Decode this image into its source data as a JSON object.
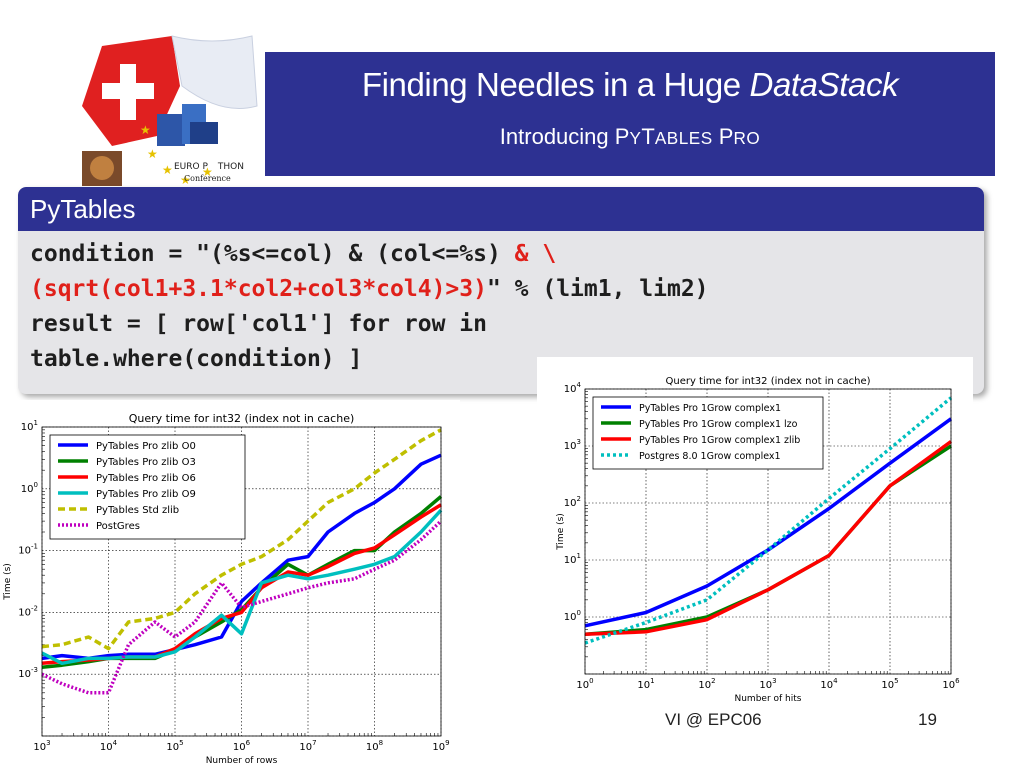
{
  "header": {
    "title_prefix": "Finding Needles in a Huge ",
    "title_emph": "DataStack",
    "subtitle_prefix": "Introducing P",
    "subtitle_sc1": "Y",
    "subtitle_mid1": "T",
    "subtitle_sc2": "ABLES",
    "subtitle_mid2": " P",
    "subtitle_sc3": "RO"
  },
  "logo": {
    "line1": "EURO P",
    "line1b": "THON",
    "line2": "Conference"
  },
  "block": {
    "title": "PyTables",
    "lines": [
      [
        {
          "t": "condition = \"(%s<=col) & (col<=%s) ",
          "c": "k"
        },
        {
          "t": "& \\",
          "c": "r"
        }
      ],
      [
        {
          "t": "(sqrt(col1+3.1*col2+col3*col4)>3)",
          "c": "r"
        },
        {
          "t": "\" % (lim1, lim2)",
          "c": "k"
        }
      ],
      [
        {
          "t": "result = [ row['col1'] for row in",
          "c": "k"
        }
      ],
      [
        {
          "t": "table.where(condition) ]",
          "c": "k"
        }
      ]
    ]
  },
  "colors": {
    "header_bg": "#2d3192",
    "code_red": "#e0201a"
  },
  "chart_data": [
    {
      "type": "line",
      "title": "Query time for int32 (index not in cache)",
      "xlabel": "Number of rows",
      "ylabel": "Time (s)",
      "xscale": "log",
      "yscale": "log",
      "xlim": [
        1000,
        1000000000
      ],
      "ylim": [
        0.0001,
        10
      ],
      "xticks": [
        "10^3",
        "10^4",
        "10^5",
        "10^6",
        "10^7",
        "10^8",
        "10^9"
      ],
      "yticks": [
        "10^-3",
        "10^-2",
        "10^-1",
        "10^0",
        "10^1"
      ],
      "grid": true,
      "legend": "top-left",
      "series": [
        {
          "name": "PyTables Pro zlib O0",
          "color": "#0000ff",
          "dash": "solid",
          "points": [
            [
              1000,
              0.0018
            ],
            [
              2000,
              0.002
            ],
            [
              5000,
              0.0018
            ],
            [
              10000,
              0.002
            ],
            [
              20000,
              0.0021
            ],
            [
              50000,
              0.0021
            ],
            [
              100000,
              0.0025
            ],
            [
              200000,
              0.003
            ],
            [
              500000,
              0.004
            ],
            [
              1000000,
              0.015
            ],
            [
              2000000,
              0.03
            ],
            [
              5000000,
              0.07
            ],
            [
              10000000,
              0.08
            ],
            [
              20000000,
              0.2
            ],
            [
              50000000,
              0.4
            ],
            [
              100000000,
              0.6
            ],
            [
              200000000,
              1.0
            ],
            [
              500000000,
              2.5
            ],
            [
              1000000000,
              3.5
            ]
          ]
        },
        {
          "name": "PyTables Pro zlib O3",
          "color": "#008000",
          "dash": "solid",
          "points": [
            [
              1000,
              0.0013
            ],
            [
              2000,
              0.0014
            ],
            [
              5000,
              0.0016
            ],
            [
              10000,
              0.0018
            ],
            [
              20000,
              0.0018
            ],
            [
              50000,
              0.0018
            ],
            [
              100000,
              0.0025
            ],
            [
              200000,
              0.004
            ],
            [
              500000,
              0.007
            ],
            [
              1000000,
              0.011
            ],
            [
              2000000,
              0.025
            ],
            [
              5000000,
              0.06
            ],
            [
              10000000,
              0.04
            ],
            [
              20000000,
              0.06
            ],
            [
              50000000,
              0.1
            ],
            [
              100000000,
              0.1
            ],
            [
              200000000,
              0.2
            ],
            [
              500000000,
              0.4
            ],
            [
              1000000000,
              0.75
            ]
          ]
        },
        {
          "name": "PyTables Pro zlib O6",
          "color": "#ff0000",
          "dash": "solid",
          "points": [
            [
              1000,
              0.0015
            ],
            [
              2000,
              0.0016
            ],
            [
              5000,
              0.0017
            ],
            [
              10000,
              0.0018
            ],
            [
              20000,
              0.0019
            ],
            [
              50000,
              0.0019
            ],
            [
              100000,
              0.0026
            ],
            [
              200000,
              0.0045
            ],
            [
              500000,
              0.008
            ],
            [
              1000000,
              0.01
            ],
            [
              2000000,
              0.025
            ],
            [
              5000000,
              0.045
            ],
            [
              10000000,
              0.04
            ],
            [
              20000000,
              0.055
            ],
            [
              50000000,
              0.09
            ],
            [
              100000000,
              0.11
            ],
            [
              200000000,
              0.18
            ],
            [
              500000000,
              0.35
            ],
            [
              1000000000,
              0.55
            ]
          ]
        },
        {
          "name": "PyTables Pro zlib O9",
          "color": "#00bfbf",
          "dash": "solid",
          "points": [
            [
              1000,
              0.0022
            ],
            [
              2000,
              0.0015
            ],
            [
              5000,
              0.0018
            ],
            [
              10000,
              0.0018
            ],
            [
              20000,
              0.0019
            ],
            [
              50000,
              0.0019
            ],
            [
              100000,
              0.0023
            ],
            [
              200000,
              0.004
            ],
            [
              500000,
              0.009
            ],
            [
              1000000,
              0.0045
            ],
            [
              2000000,
              0.03
            ],
            [
              5000000,
              0.04
            ],
            [
              10000000,
              0.035
            ],
            [
              20000000,
              0.04
            ],
            [
              50000000,
              0.05
            ],
            [
              100000000,
              0.06
            ],
            [
              200000000,
              0.08
            ],
            [
              500000000,
              0.2
            ],
            [
              1000000000,
              0.45
            ]
          ]
        },
        {
          "name": "PyTables Std zlib",
          "color": "#bfbf00",
          "dash": "dashed",
          "points": [
            [
              1000,
              0.0028
            ],
            [
              2000,
              0.003
            ],
            [
              5000,
              0.004
            ],
            [
              10000,
              0.0026
            ],
            [
              20000,
              0.007
            ],
            [
              50000,
              0.008
            ],
            [
              100000,
              0.01
            ],
            [
              200000,
              0.02
            ],
            [
              500000,
              0.04
            ],
            [
              1000000,
              0.06
            ],
            [
              2000000,
              0.08
            ],
            [
              5000000,
              0.15
            ],
            [
              10000000,
              0.3
            ],
            [
              20000000,
              0.6
            ],
            [
              50000000,
              1.0
            ],
            [
              100000000,
              1.8
            ],
            [
              200000000,
              3.0
            ],
            [
              500000000,
              6.0
            ],
            [
              1000000000,
              9.0
            ]
          ]
        },
        {
          "name": "PostGres",
          "color": "#bf00bf",
          "dash": "dotted",
          "points": [
            [
              1000,
              0.001
            ],
            [
              2000,
              0.0007
            ],
            [
              5000,
              0.0005
            ],
            [
              10000,
              0.0005
            ],
            [
              20000,
              0.003
            ],
            [
              50000,
              0.007
            ],
            [
              100000,
              0.004
            ],
            [
              200000,
              0.007
            ],
            [
              500000,
              0.03
            ],
            [
              1000000,
              0.012
            ],
            [
              2000000,
              0.015
            ],
            [
              5000000,
              0.02
            ],
            [
              10000000,
              0.025
            ],
            [
              20000000,
              0.03
            ],
            [
              50000000,
              0.035
            ],
            [
              100000000,
              0.05
            ],
            [
              200000000,
              0.07
            ],
            [
              500000000,
              0.15
            ],
            [
              1000000000,
              0.3
            ]
          ]
        }
      ]
    },
    {
      "type": "line",
      "title": "Query time for int32 (index not in cache)",
      "xlabel": "Number of hits",
      "ylabel": "Time (s)",
      "xscale": "log",
      "yscale": "log",
      "xlim": [
        1,
        1000000
      ],
      "ylim": [
        0.1,
        10000
      ],
      "xticks": [
        "10^0",
        "10^1",
        "10^2",
        "10^3",
        "10^4",
        "10^5",
        "10^6"
      ],
      "yticks": [
        "10^0",
        "10^1",
        "10^2",
        "10^3",
        "10^4"
      ],
      "grid": true,
      "legend": "top-left",
      "series": [
        {
          "name": "PyTables Pro 1Grow complex1",
          "color": "#0000ff",
          "dash": "solid",
          "points": [
            [
              1,
              0.7
            ],
            [
              10,
              1.2
            ],
            [
              100,
              3.5
            ],
            [
              1000,
              15
            ],
            [
              10000,
              80
            ],
            [
              100000,
              500
            ],
            [
              1000000,
              3000
            ]
          ]
        },
        {
          "name": "PyTables Pro 1Grow complex1 lzo",
          "color": "#008000",
          "dash": "solid",
          "points": [
            [
              1,
              0.5
            ],
            [
              10,
              0.6
            ],
            [
              100,
              1.0
            ],
            [
              1000,
              3.0
            ],
            [
              10000,
              12
            ],
            [
              100000,
              200
            ],
            [
              1000000,
              1000
            ]
          ]
        },
        {
          "name": "PyTables Pro 1Grow complex1 zlib",
          "color": "#ff0000",
          "dash": "solid",
          "points": [
            [
              1,
              0.5
            ],
            [
              10,
              0.55
            ],
            [
              100,
              0.9
            ],
            [
              1000,
              3.0
            ],
            [
              10000,
              12
            ],
            [
              100000,
              200
            ],
            [
              1000000,
              1200
            ]
          ]
        },
        {
          "name": "Postgres 8.0 1Grow complex1",
          "color": "#00bfbf",
          "dash": "dotted",
          "points": [
            [
              1,
              0.35
            ],
            [
              10,
              0.8
            ],
            [
              100,
              2.0
            ],
            [
              1000,
              15
            ],
            [
              10000,
              120
            ],
            [
              100000,
              900
            ],
            [
              1000000,
              7000
            ]
          ]
        }
      ]
    }
  ],
  "footer": {
    "left": "VI @ EPC06",
    "page": "19"
  }
}
